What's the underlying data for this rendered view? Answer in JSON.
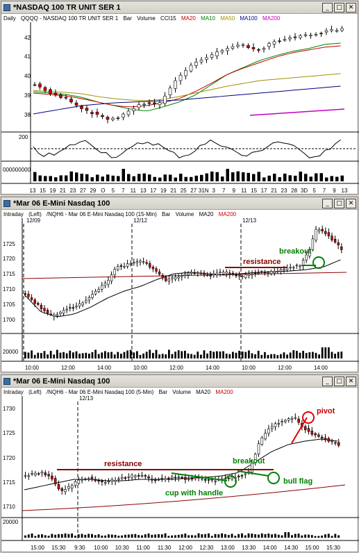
{
  "windows": [
    {
      "title": "*NASDAQ 100 TR UNIT SER 1",
      "header": {
        "interval": "Daily",
        "symbol": "QQQQ - NASDAQ 100 TR UNIT SER 1",
        "type": "Bar",
        "volume": "Volume",
        "indicators": [
          {
            "label": "CCI15",
            "color": "#000000"
          },
          {
            "label": "MA20",
            "color": "#c00000"
          },
          {
            "label": "MA10",
            "color": "#008000"
          },
          {
            "label": "MA50",
            "color": "#a09000"
          },
          {
            "label": "MA100",
            "color": "#000080"
          },
          {
            "label": "MA200",
            "color": "#c000c0"
          }
        ]
      },
      "price_ticks": [
        "42",
        "41",
        "40",
        "39",
        "38"
      ],
      "cci_tick": "200",
      "vol_tick": "000000000",
      "x_ticks": [
        "13",
        "15",
        "19",
        "21",
        "23",
        "27",
        "29",
        "O",
        "5",
        "7",
        "11",
        "13",
        "17",
        "19",
        "21",
        "25",
        "27",
        "31N",
        "3",
        "7",
        "9",
        "11",
        "15",
        "17",
        "21",
        "23",
        "28",
        "3D",
        "5",
        "7",
        "9",
        "13"
      ]
    },
    {
      "title": "*Mar 06  E-Mini Nasdaq 100",
      "header": {
        "interval": "Intraday",
        "pane": "(Left)",
        "symbol": "/NQH6 - Mar 06 E-Mini Nasdaq 100 (15-Min)",
        "type": "Bar",
        "volume": "Volume",
        "indicators": [
          {
            "label": "MA20",
            "color": "#000000"
          },
          {
            "label": "MA200",
            "color": "#c00000"
          }
        ]
      },
      "dates": [
        "12/09",
        "12/12",
        "12/13"
      ],
      "price_ticks": [
        "1725",
        "1720",
        "1715",
        "1710",
        "1705",
        "1700"
      ],
      "vol_tick": "20000",
      "x_ticks": [
        "10:00",
        "12:00",
        "14:00",
        "10:00",
        "12:00",
        "14:00",
        "10:00",
        "12:00",
        "14:00"
      ],
      "annotations": {
        "resistance": "resistance",
        "breakout": "breakout"
      }
    },
    {
      "title": "*Mar 06  E-Mini Nasdaq 100",
      "header": {
        "interval": "Intraday",
        "pane": "(Left)",
        "symbol": "/NQH6 - Mar 06 E-Mini Nasdaq 100 (5-Min)",
        "type": "Bar",
        "volume": "Volume",
        "indicators": [
          {
            "label": "MA20",
            "color": "#000000"
          },
          {
            "label": "MA200",
            "color": "#c00000"
          }
        ]
      },
      "dates": [
        "12/13"
      ],
      "price_ticks": [
        "1730",
        "1725",
        "1720",
        "1715",
        "1710"
      ],
      "vol_tick": "20000",
      "x_ticks": [
        "15:00",
        "15:30",
        "9:30",
        "10:00",
        "10:30",
        "11:00",
        "11:30",
        "12:00",
        "12:30",
        "13:00",
        "13:30",
        "14:00",
        "14:30",
        "15:00",
        "15:30"
      ],
      "annotations": {
        "resistance": "resistance",
        "breakout": "breakout",
        "pivot": "pivot",
        "cup": "cup with handle",
        "flag": "bull flag"
      }
    }
  ]
}
